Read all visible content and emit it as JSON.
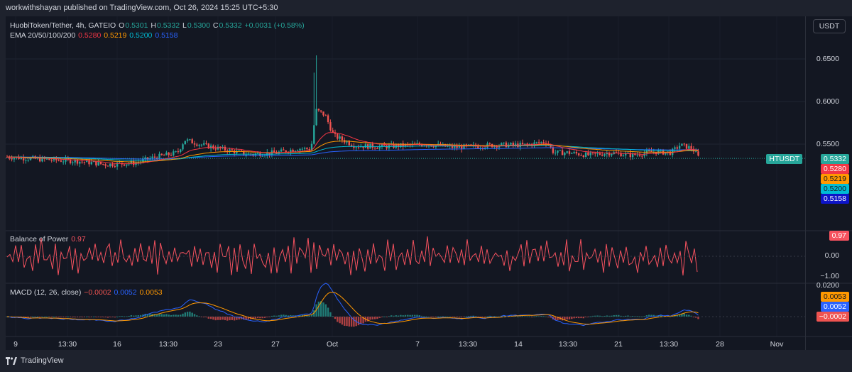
{
  "header": {
    "published": "workwithshayan published on TradingView.com, Oct 26, 2024 15:25 UTC+5:30"
  },
  "symbol": {
    "name": "HuobiToken/Tether, 4h, GATEIO",
    "o_label": "O",
    "o": "0.5301",
    "h_label": "H",
    "h": "0.5332",
    "l_label": "L",
    "l": "0.5300",
    "c_label": "C",
    "c": "0.5332",
    "change": "+0.0031 (+0.58%)"
  },
  "ema": {
    "label": "EMA 20/50/100/200",
    "v20": "0.5280",
    "v50": "0.5219",
    "v100": "0.5200",
    "v200": "0.5158"
  },
  "currency_button": "USDT",
  "price_axis": {
    "ticks": [
      "0.6500",
      "0.6000",
      "0.5500"
    ]
  },
  "tags": {
    "symbol": "HTUSDT",
    "last": "0.5332",
    "ema20": "0.5280",
    "ema50": "0.5219",
    "ema100": "0.5200",
    "ema200": "0.5158",
    "bop": "0.97",
    "macd_signal": "0.0053",
    "macd_line": "0.0052",
    "macd_hist": "−0.0002"
  },
  "bop": {
    "label": "Balance of Power",
    "value": "0.97",
    "ticks": [
      "0.00",
      "−1.00"
    ]
  },
  "macd": {
    "label": "MACD (12, 26, close)",
    "hist": "−0.0002",
    "macd": "0.0052",
    "signal": "0.0053",
    "ticks": [
      "0.0200"
    ]
  },
  "time_axis": [
    "9",
    "13:30",
    "16",
    "13:30",
    "23",
    "27",
    "Oct",
    "7",
    "13:30",
    "14",
    "13:30",
    "21",
    "13:30",
    "28",
    "Nov"
  ],
  "footer": {
    "brand": "TradingView"
  },
  "colors": {
    "up": "#26a69a",
    "down": "#ef5350",
    "ema20": "#f23645",
    "ema50": "#ff9800",
    "ema100": "#00bcd4",
    "ema200": "#2962ff",
    "bop": "#f7525f"
  }
}
